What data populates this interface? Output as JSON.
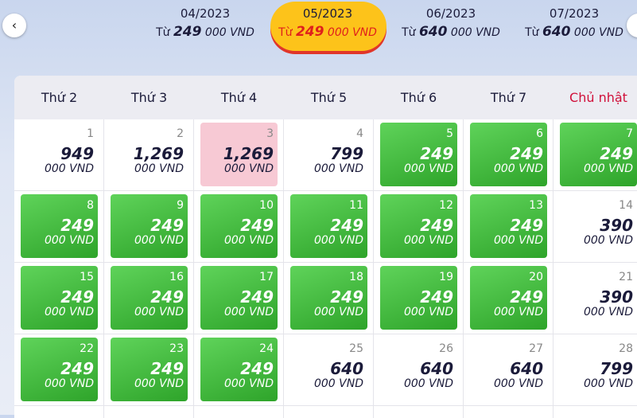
{
  "months": [
    {
      "month": "04/2023",
      "prefix": "Từ",
      "price": "249",
      "unit": "000 VND",
      "selected": false
    },
    {
      "month": "05/2023",
      "prefix": "Từ",
      "price": "249",
      "unit": "000 VND",
      "selected": true
    },
    {
      "month": "06/2023",
      "prefix": "Từ",
      "price": "640",
      "unit": "000 VND",
      "selected": false
    },
    {
      "month": "07/2023",
      "prefix": "Từ",
      "price": "640",
      "unit": "000 VND",
      "selected": false
    }
  ],
  "weekdays": [
    {
      "label": "Thứ 2",
      "color": "#1b1b3a"
    },
    {
      "label": "Thứ 3",
      "color": "#1b1b3a"
    },
    {
      "label": "Thứ 4",
      "color": "#1b1b3a"
    },
    {
      "label": "Thứ 5",
      "color": "#1b1b3a"
    },
    {
      "label": "Thứ 6",
      "color": "#1b1b3a"
    },
    {
      "label": "Thứ 7",
      "color": "#1b1b3a"
    },
    {
      "label": "Chủ nhật",
      "color": "#d0103a"
    }
  ],
  "weeks": [
    [
      {
        "day": 1,
        "price": "949",
        "unit": "000 VND",
        "color": "white"
      },
      {
        "day": 2,
        "price": "1,269",
        "unit": "000 VND",
        "color": "white"
      },
      {
        "day": 3,
        "price": "1,269",
        "unit": "000 VND",
        "color": "pink"
      },
      {
        "day": 4,
        "price": "799",
        "unit": "000 VND",
        "color": "white"
      },
      {
        "day": 5,
        "price": "249",
        "unit": "000 VND",
        "color": "green"
      },
      {
        "day": 6,
        "price": "249",
        "unit": "000 VND",
        "color": "green"
      },
      {
        "day": 7,
        "price": "249",
        "unit": "000 VND",
        "color": "green"
      }
    ],
    [
      {
        "day": 8,
        "price": "249",
        "unit": "000 VND",
        "color": "green"
      },
      {
        "day": 9,
        "price": "249",
        "unit": "000 VND",
        "color": "green"
      },
      {
        "day": 10,
        "price": "249",
        "unit": "000 VND",
        "color": "green"
      },
      {
        "day": 11,
        "price": "249",
        "unit": "000 VND",
        "color": "green"
      },
      {
        "day": 12,
        "price": "249",
        "unit": "000 VND",
        "color": "green"
      },
      {
        "day": 13,
        "price": "249",
        "unit": "000 VND",
        "color": "green"
      },
      {
        "day": 14,
        "price": "390",
        "unit": "000 VND",
        "color": "white"
      }
    ],
    [
      {
        "day": 15,
        "price": "249",
        "unit": "000 VND",
        "color": "green"
      },
      {
        "day": 16,
        "price": "249",
        "unit": "000 VND",
        "color": "green"
      },
      {
        "day": 17,
        "price": "249",
        "unit": "000 VND",
        "color": "green"
      },
      {
        "day": 18,
        "price": "249",
        "unit": "000 VND",
        "color": "green"
      },
      {
        "day": 19,
        "price": "249",
        "unit": "000 VND",
        "color": "green"
      },
      {
        "day": 20,
        "price": "249",
        "unit": "000 VND",
        "color": "green"
      },
      {
        "day": 21,
        "price": "390",
        "unit": "000 VND",
        "color": "white"
      }
    ],
    [
      {
        "day": 22,
        "price": "249",
        "unit": "000 VND",
        "color": "green"
      },
      {
        "day": 23,
        "price": "249",
        "unit": "000 VND",
        "color": "green"
      },
      {
        "day": 24,
        "price": "249",
        "unit": "000 VND",
        "color": "green"
      },
      {
        "day": 25,
        "price": "640",
        "unit": "000 VND",
        "color": "white"
      },
      {
        "day": 26,
        "price": "640",
        "unit": "000 VND",
        "color": "white"
      },
      {
        "day": 27,
        "price": "640",
        "unit": "000 VND",
        "color": "white"
      },
      {
        "day": 28,
        "price": "799",
        "unit": "000 VND",
        "color": "white"
      }
    ]
  ]
}
